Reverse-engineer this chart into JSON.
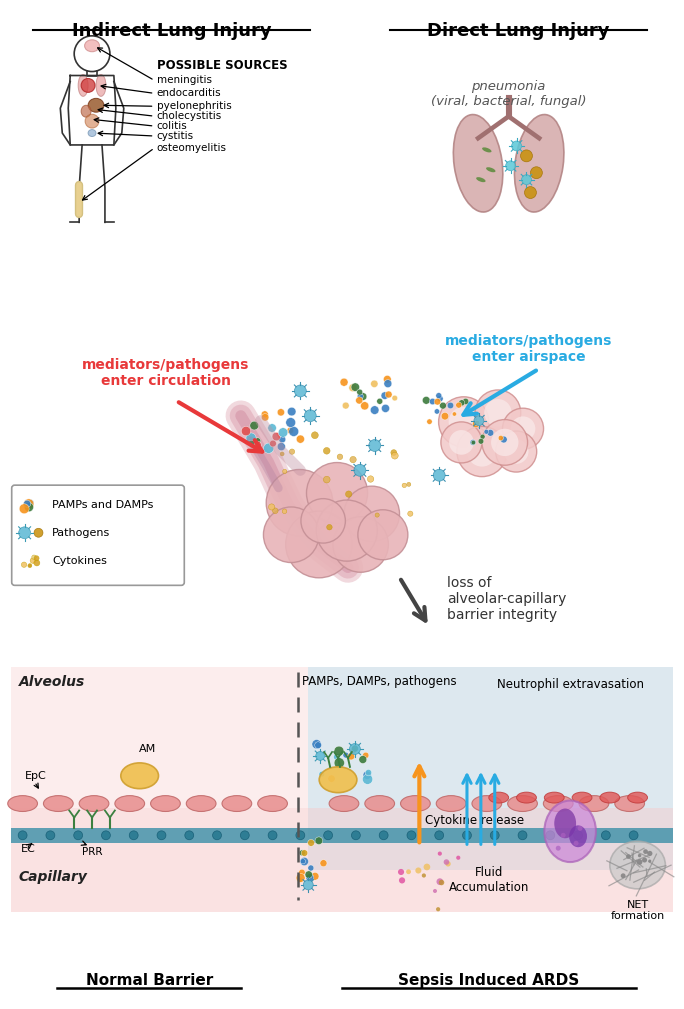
{
  "indirect_label": "Indirect Lung Injury",
  "direct_label": "Direct Lung Injury",
  "possible_sources": "POSSIBLE SOURCES",
  "indirect_sources": [
    "meningitis",
    "endocarditis",
    "pyelonephritis",
    "cholecystitis",
    "colitis",
    "cystitis",
    "osteomyelitis"
  ],
  "pneumonia_label": "pneumonia\n(viral, bacterial, fungal)",
  "mediators_circulation": "mediators/pathogens\nenter circulation",
  "mediators_airspace": "mediators/pathogens\nenter airspace",
  "loss_barrier": "loss of\nalveolar-capillary\nbarrier integrity",
  "legend_items": [
    "PAMPs and DAMPs",
    "Pathogens",
    "Cytokines"
  ],
  "alveolus_label": "Alveolus",
  "capillary_label": "Capillary",
  "normal_barrier": "Normal Barrier",
  "sepsis_ards": "Sepsis Induced ARDS",
  "color_red": "#E8393A",
  "color_cyan": "#29ABE2",
  "color_orange": "#F7941D",
  "color_green": "#3C7A3C",
  "color_gray": "#AAAAAA",
  "bg_color": "#FFFFFF"
}
